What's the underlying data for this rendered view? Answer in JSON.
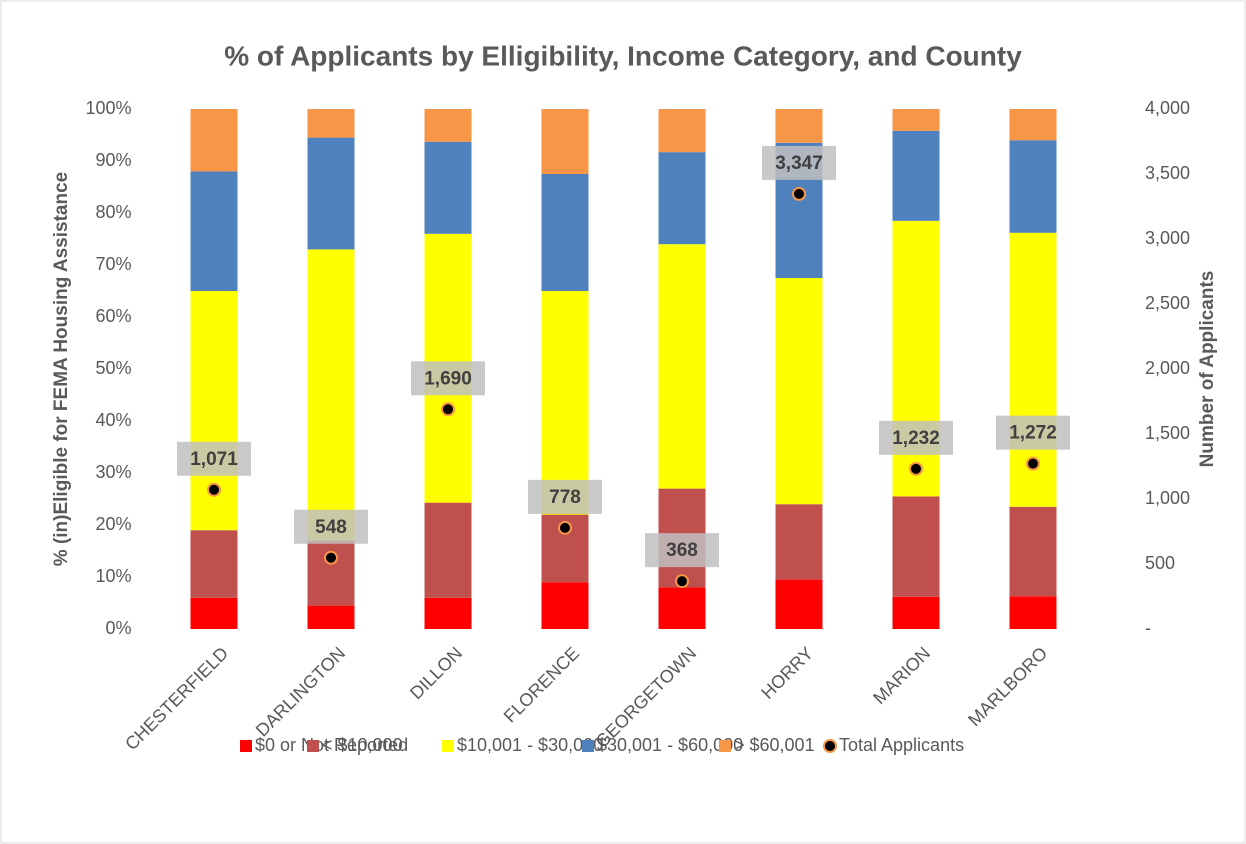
{
  "chart_data": {
    "type": "bar",
    "stacked": true,
    "title": "% of Applicants by Elligibility, Income Category, and County",
    "ylabel": "% (in)Eligible for FEMA Housing Assistance",
    "y2label": "Number of Applicants",
    "categories": [
      "CHESTERFIELD",
      "DARLINGTON",
      "DILLON",
      "FLORENCE",
      "GEORGETOWN",
      "HORRY",
      "MARION",
      "MARLBORO"
    ],
    "series": [
      {
        "name": "$0 or Not Reported",
        "color": "#ff0000",
        "values": [
          6,
          4.5,
          6,
          9,
          8,
          9.5,
          6.2,
          6.3
        ]
      },
      {
        "name": "< $10,000",
        "color": "#c0504d",
        "values": [
          13,
          12.5,
          18.3,
          13,
          19,
          14.5,
          19.3,
          17.2
        ]
      },
      {
        "name": "$10,001 - $30,000",
        "color": "#ffff00",
        "values": [
          46,
          56,
          51.7,
          43,
          47,
          43.5,
          53,
          52.7
        ]
      },
      {
        "name": "$30,001 - $60,000",
        "color": "#4f81bd",
        "values": [
          23,
          21.5,
          17.7,
          22.5,
          17.7,
          26,
          17.3,
          17.8
        ]
      },
      {
        "name": "> $60,001",
        "color": "#f79646",
        "values": [
          12,
          5.5,
          6.3,
          12.5,
          8.3,
          6.5,
          4.2,
          6
        ]
      },
      {
        "name": "Total Applicants",
        "type": "scatter",
        "axis": "y2",
        "color": "#000000",
        "edge_color": "#f79646",
        "values": [
          1071,
          548,
          1690,
          778,
          368,
          3347,
          1232,
          1272
        ],
        "value_labels": [
          "1,071",
          "548",
          "1,690",
          "778",
          "368",
          "3,347",
          "1,232",
          "1,272"
        ]
      }
    ],
    "ylim": [
      0,
      100
    ],
    "yticks": [
      {
        "value": 0,
        "label": "0%"
      },
      {
        "value": 10,
        "label": "10%"
      },
      {
        "value": 20,
        "label": "20%"
      },
      {
        "value": 30,
        "label": "30%"
      },
      {
        "value": 40,
        "label": "40%"
      },
      {
        "value": 50,
        "label": "50%"
      },
      {
        "value": 60,
        "label": "60%"
      },
      {
        "value": 70,
        "label": "70%"
      },
      {
        "value": 80,
        "label": "80%"
      },
      {
        "value": 90,
        "label": "90%"
      },
      {
        "value": 100,
        "label": "100%"
      }
    ],
    "y2lim": [
      0,
      4000
    ],
    "y2ticks": [
      {
        "value": 0,
        "label": "-"
      },
      500,
      {
        "value": 1000,
        "label": "1,000"
      },
      {
        "value": 1500,
        "label": "1,500"
      },
      {
        "value": 2000,
        "label": "2,000"
      },
      {
        "value": 2500,
        "label": "2,500"
      },
      {
        "value": 3000,
        "label": "3,000"
      },
      {
        "value": 3500,
        "label": "3,500"
      },
      {
        "value": 4000,
        "label": "4,000"
      }
    ],
    "grid": false,
    "legend": "bottom"
  }
}
